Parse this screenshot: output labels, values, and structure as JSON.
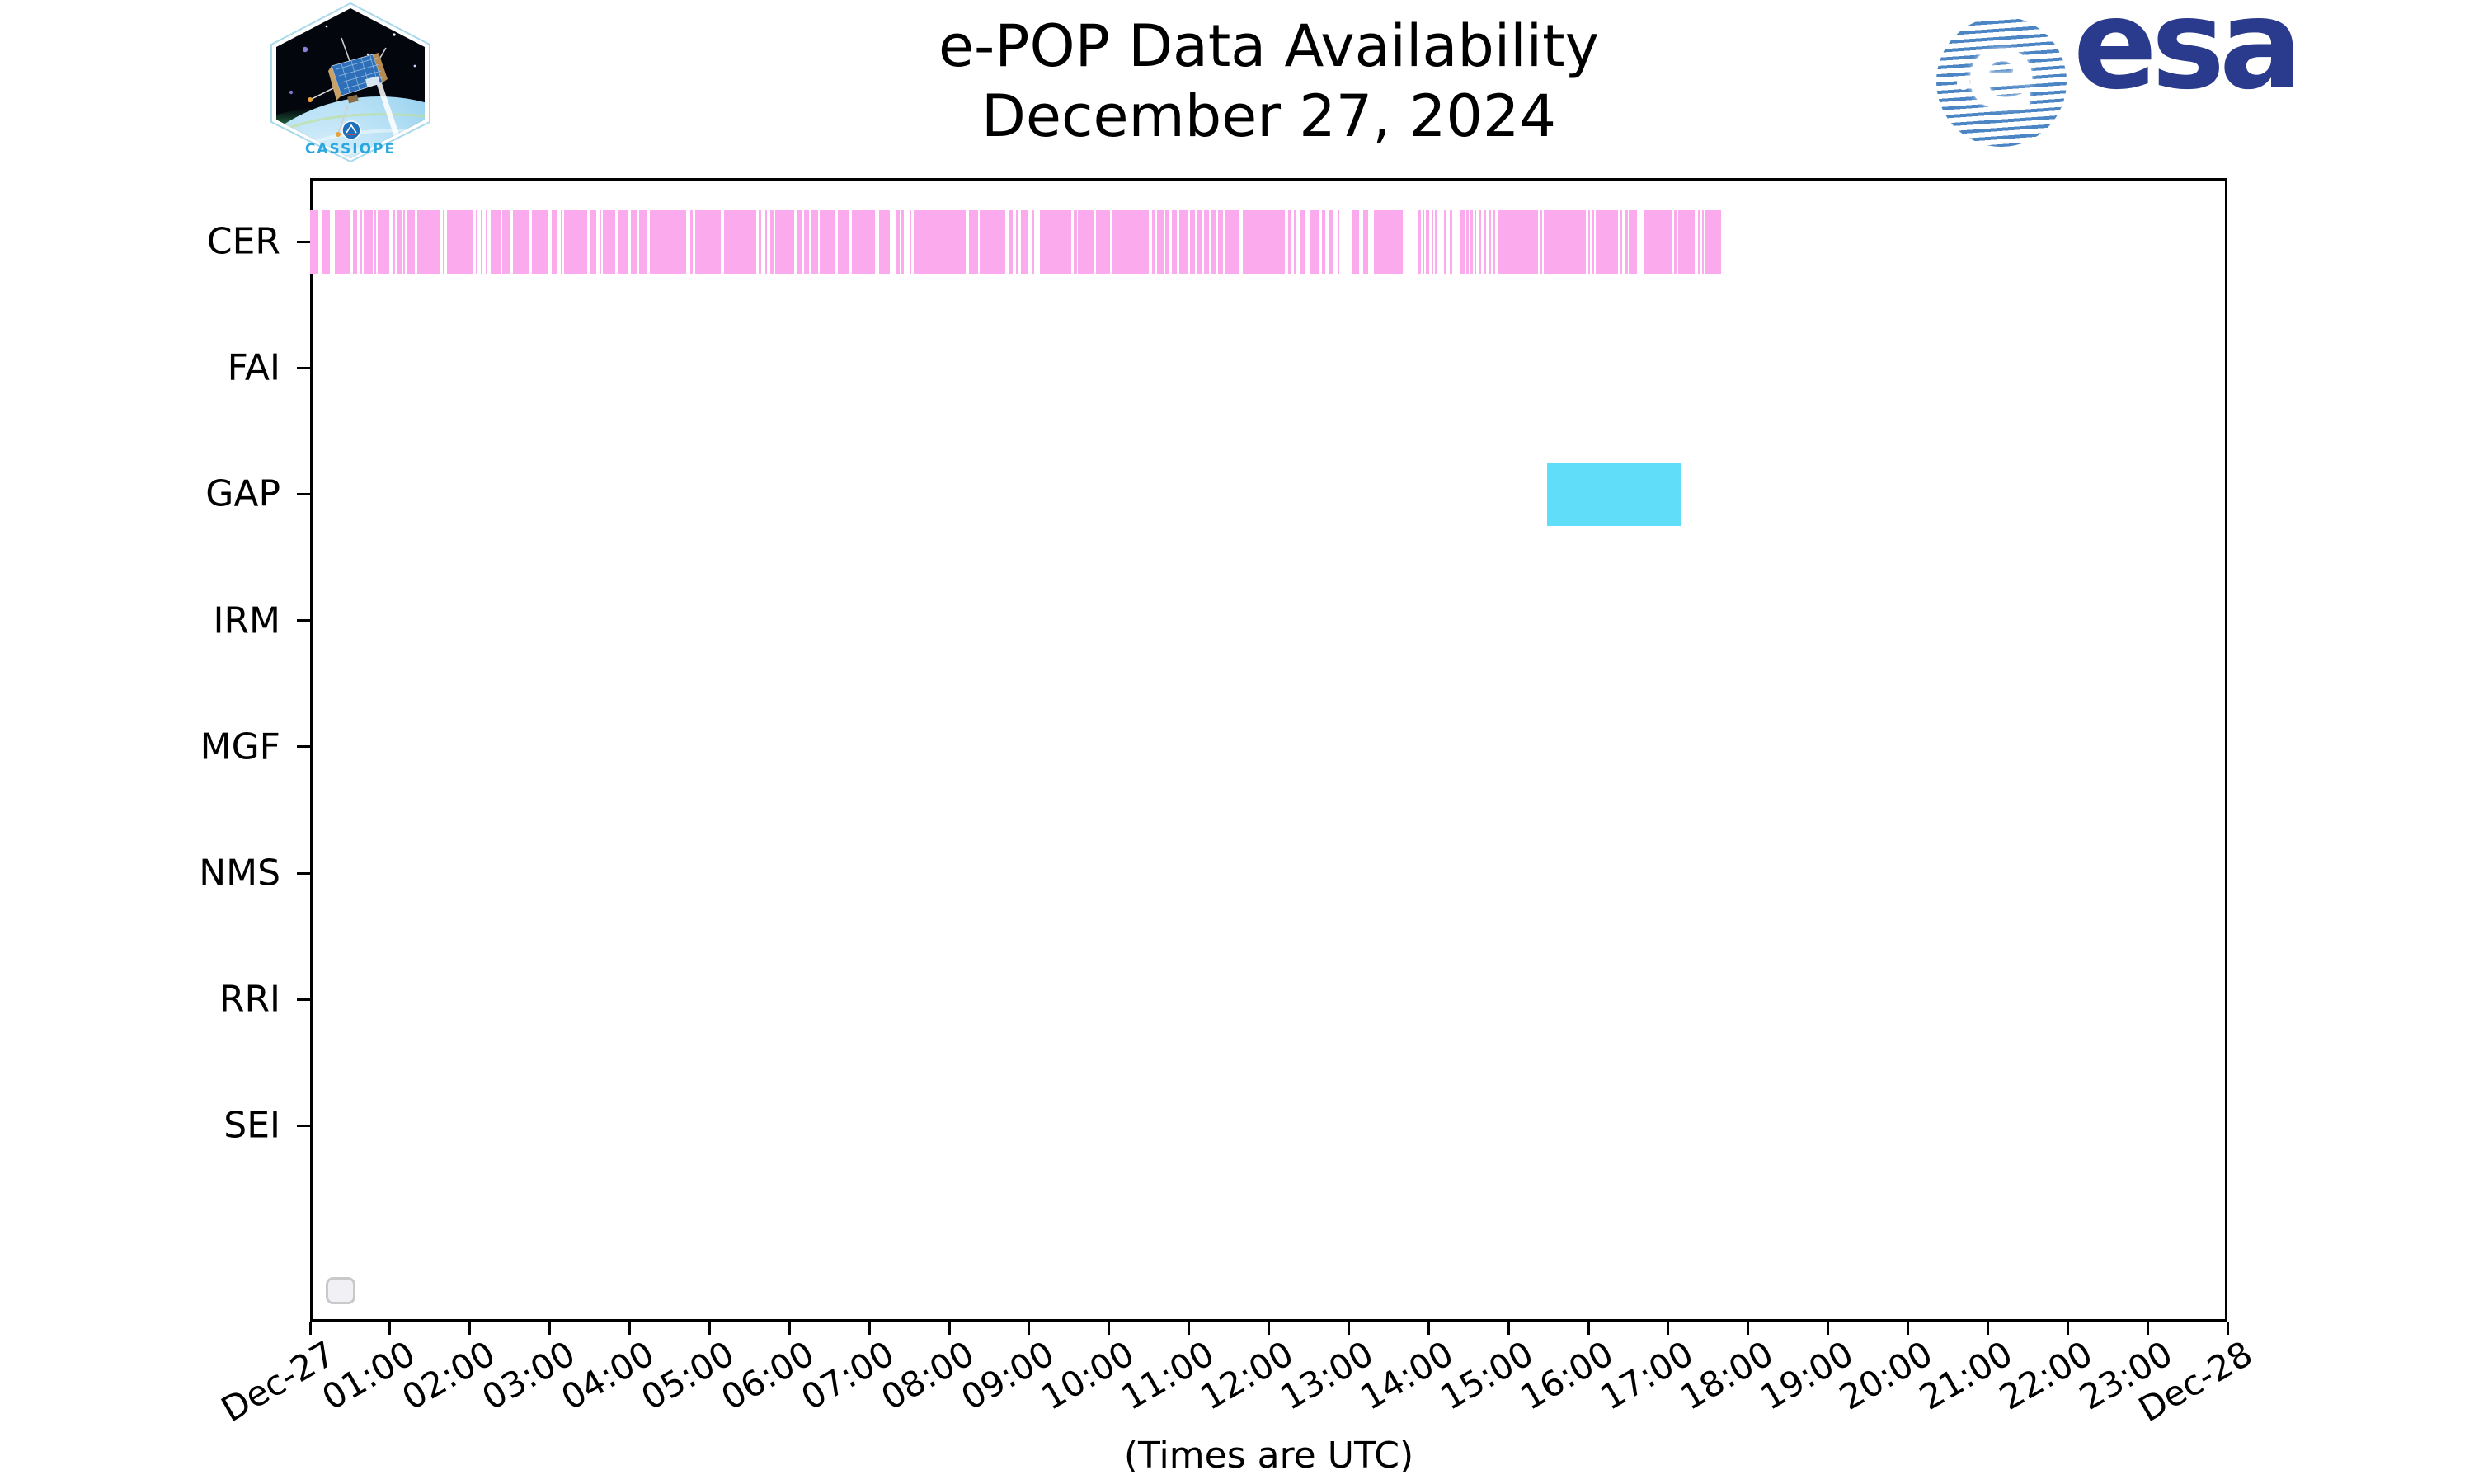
{
  "header": {
    "title_line1": "e-POP Data Availability",
    "title_line2": "December 27, 2024"
  },
  "logos": {
    "cassiope_label": "CASSIOPE",
    "esa_label": "esa",
    "esa_globe_letter": "e"
  },
  "chart_data": {
    "type": "timeline",
    "title": "e-POP Data Availability",
    "subtitle": "December 27, 2024",
    "xlabel": "(Times are UTC)",
    "grid": false,
    "x_axis": {
      "start_hour": 0,
      "end_hour": 24,
      "tick_interval_hours": 1,
      "tick_labels": [
        "Dec-27",
        "01:00",
        "02:00",
        "03:00",
        "04:00",
        "05:00",
        "06:00",
        "07:00",
        "08:00",
        "09:00",
        "10:00",
        "11:00",
        "12:00",
        "13:00",
        "14:00",
        "15:00",
        "16:00",
        "17:00",
        "18:00",
        "19:00",
        "20:00",
        "21:00",
        "22:00",
        "23:00",
        "Dec-28"
      ]
    },
    "instruments": [
      "CER",
      "FAI",
      "GAP",
      "IRM",
      "MGF",
      "NMS",
      "RRI",
      "SEI"
    ],
    "colors": {
      "cer_bars": "#fcaaee",
      "gap_bars": "#60ddf9",
      "axis": "#000000"
    },
    "series": [
      {
        "name": "CER",
        "color": "#fcaaee",
        "intervals": [
          [
            0.0,
            0.1
          ],
          [
            0.14,
            0.25
          ],
          [
            0.31,
            0.5
          ],
          [
            0.54,
            0.59
          ],
          [
            0.62,
            0.65
          ],
          [
            0.67,
            0.78
          ],
          [
            0.81,
            0.83
          ],
          [
            0.85,
            0.99
          ],
          [
            1.03,
            1.06
          ],
          [
            1.08,
            1.15
          ],
          [
            1.17,
            1.19
          ],
          [
            1.21,
            1.31
          ],
          [
            1.34,
            1.62
          ],
          [
            1.66,
            1.68
          ],
          [
            1.71,
            2.03
          ],
          [
            2.07,
            2.1
          ],
          [
            2.14,
            2.16
          ],
          [
            2.2,
            2.22
          ],
          [
            2.26,
            2.38
          ],
          [
            2.41,
            2.5
          ],
          [
            2.54,
            2.74
          ],
          [
            2.78,
            2.98
          ],
          [
            3.02,
            3.1
          ],
          [
            3.14,
            3.16
          ],
          [
            3.18,
            3.47
          ],
          [
            3.5,
            3.58
          ],
          [
            3.62,
            3.64
          ],
          [
            3.66,
            3.82
          ],
          [
            3.86,
            3.98
          ],
          [
            4.02,
            4.09
          ],
          [
            4.12,
            4.22
          ],
          [
            4.25,
            4.71
          ],
          [
            4.76,
            4.79
          ],
          [
            4.82,
            5.14
          ],
          [
            5.18,
            5.58
          ],
          [
            5.62,
            5.65
          ],
          [
            5.7,
            5.72
          ],
          [
            5.76,
            5.8
          ],
          [
            5.82,
            6.06
          ],
          [
            6.1,
            6.16
          ],
          [
            6.18,
            6.24
          ],
          [
            6.27,
            6.36
          ],
          [
            6.38,
            6.58
          ],
          [
            6.61,
            6.75
          ],
          [
            6.78,
            7.07
          ],
          [
            7.12,
            7.26
          ],
          [
            7.34,
            7.38
          ],
          [
            7.4,
            7.43
          ],
          [
            7.5,
            7.53
          ],
          [
            7.56,
            8.21
          ],
          [
            8.25,
            8.36
          ],
          [
            8.38,
            8.7
          ],
          [
            8.75,
            8.79
          ],
          [
            8.84,
            8.87
          ],
          [
            8.9,
            8.99
          ],
          [
            9.03,
            9.06
          ],
          [
            9.14,
            9.53
          ],
          [
            9.56,
            9.6
          ],
          [
            9.61,
            9.81
          ],
          [
            9.84,
            10.01
          ],
          [
            10.04,
            10.5
          ],
          [
            10.54,
            10.57
          ],
          [
            10.6,
            10.68
          ],
          [
            10.7,
            10.76
          ],
          [
            10.79,
            10.85
          ],
          [
            10.88,
            10.99
          ],
          [
            11.01,
            11.08
          ],
          [
            11.1,
            11.16
          ],
          [
            11.19,
            11.25
          ],
          [
            11.28,
            11.34
          ],
          [
            11.37,
            11.43
          ],
          [
            11.46,
            11.62
          ],
          [
            11.67,
            12.2
          ],
          [
            12.24,
            12.27
          ],
          [
            12.31,
            12.35
          ],
          [
            12.4,
            12.46
          ],
          [
            12.52,
            12.62
          ],
          [
            12.67,
            12.71
          ],
          [
            12.76,
            12.8
          ],
          [
            12.86,
            12.88
          ],
          [
            13.05,
            13.13
          ],
          [
            13.18,
            13.24
          ],
          [
            13.32,
            13.68
          ],
          [
            13.87,
            13.9
          ],
          [
            13.93,
            13.95
          ],
          [
            13.97,
            14.01
          ],
          [
            14.04,
            14.06
          ],
          [
            14.08,
            14.11
          ],
          [
            14.19,
            14.22
          ],
          [
            14.27,
            14.3
          ],
          [
            14.4,
            14.45
          ],
          [
            14.47,
            14.5
          ],
          [
            14.52,
            14.55
          ],
          [
            14.58,
            14.6
          ],
          [
            14.63,
            14.66
          ],
          [
            14.69,
            14.72
          ],
          [
            14.75,
            14.78
          ],
          [
            14.81,
            14.83
          ],
          [
            14.87,
            15.37
          ],
          [
            15.4,
            15.42
          ],
          [
            15.44,
            15.97
          ],
          [
            16.0,
            16.02
          ],
          [
            16.05,
            16.07
          ],
          [
            16.09,
            16.37
          ],
          [
            16.39,
            16.42
          ],
          [
            16.46,
            16.5
          ],
          [
            16.51,
            16.61
          ],
          [
            16.7,
            17.05
          ],
          [
            17.07,
            17.1
          ],
          [
            17.13,
            17.16
          ],
          [
            17.17,
            17.33
          ],
          [
            17.37,
            17.4
          ],
          [
            17.42,
            17.45
          ],
          [
            17.47,
            17.66
          ]
        ]
      },
      {
        "name": "FAI",
        "color": "#fcaaee",
        "intervals": []
      },
      {
        "name": "GAP",
        "color": "#60ddf9",
        "intervals": [
          [
            15.48,
            17.17
          ]
        ]
      },
      {
        "name": "IRM",
        "color": "#fcaaee",
        "intervals": []
      },
      {
        "name": "MGF",
        "color": "#fcaaee",
        "intervals": []
      },
      {
        "name": "NMS",
        "color": "#fcaaee",
        "intervals": []
      },
      {
        "name": "RRI",
        "color": "#fcaaee",
        "intervals": []
      },
      {
        "name": "SEI",
        "color": "#fcaaee",
        "intervals": []
      }
    ]
  }
}
